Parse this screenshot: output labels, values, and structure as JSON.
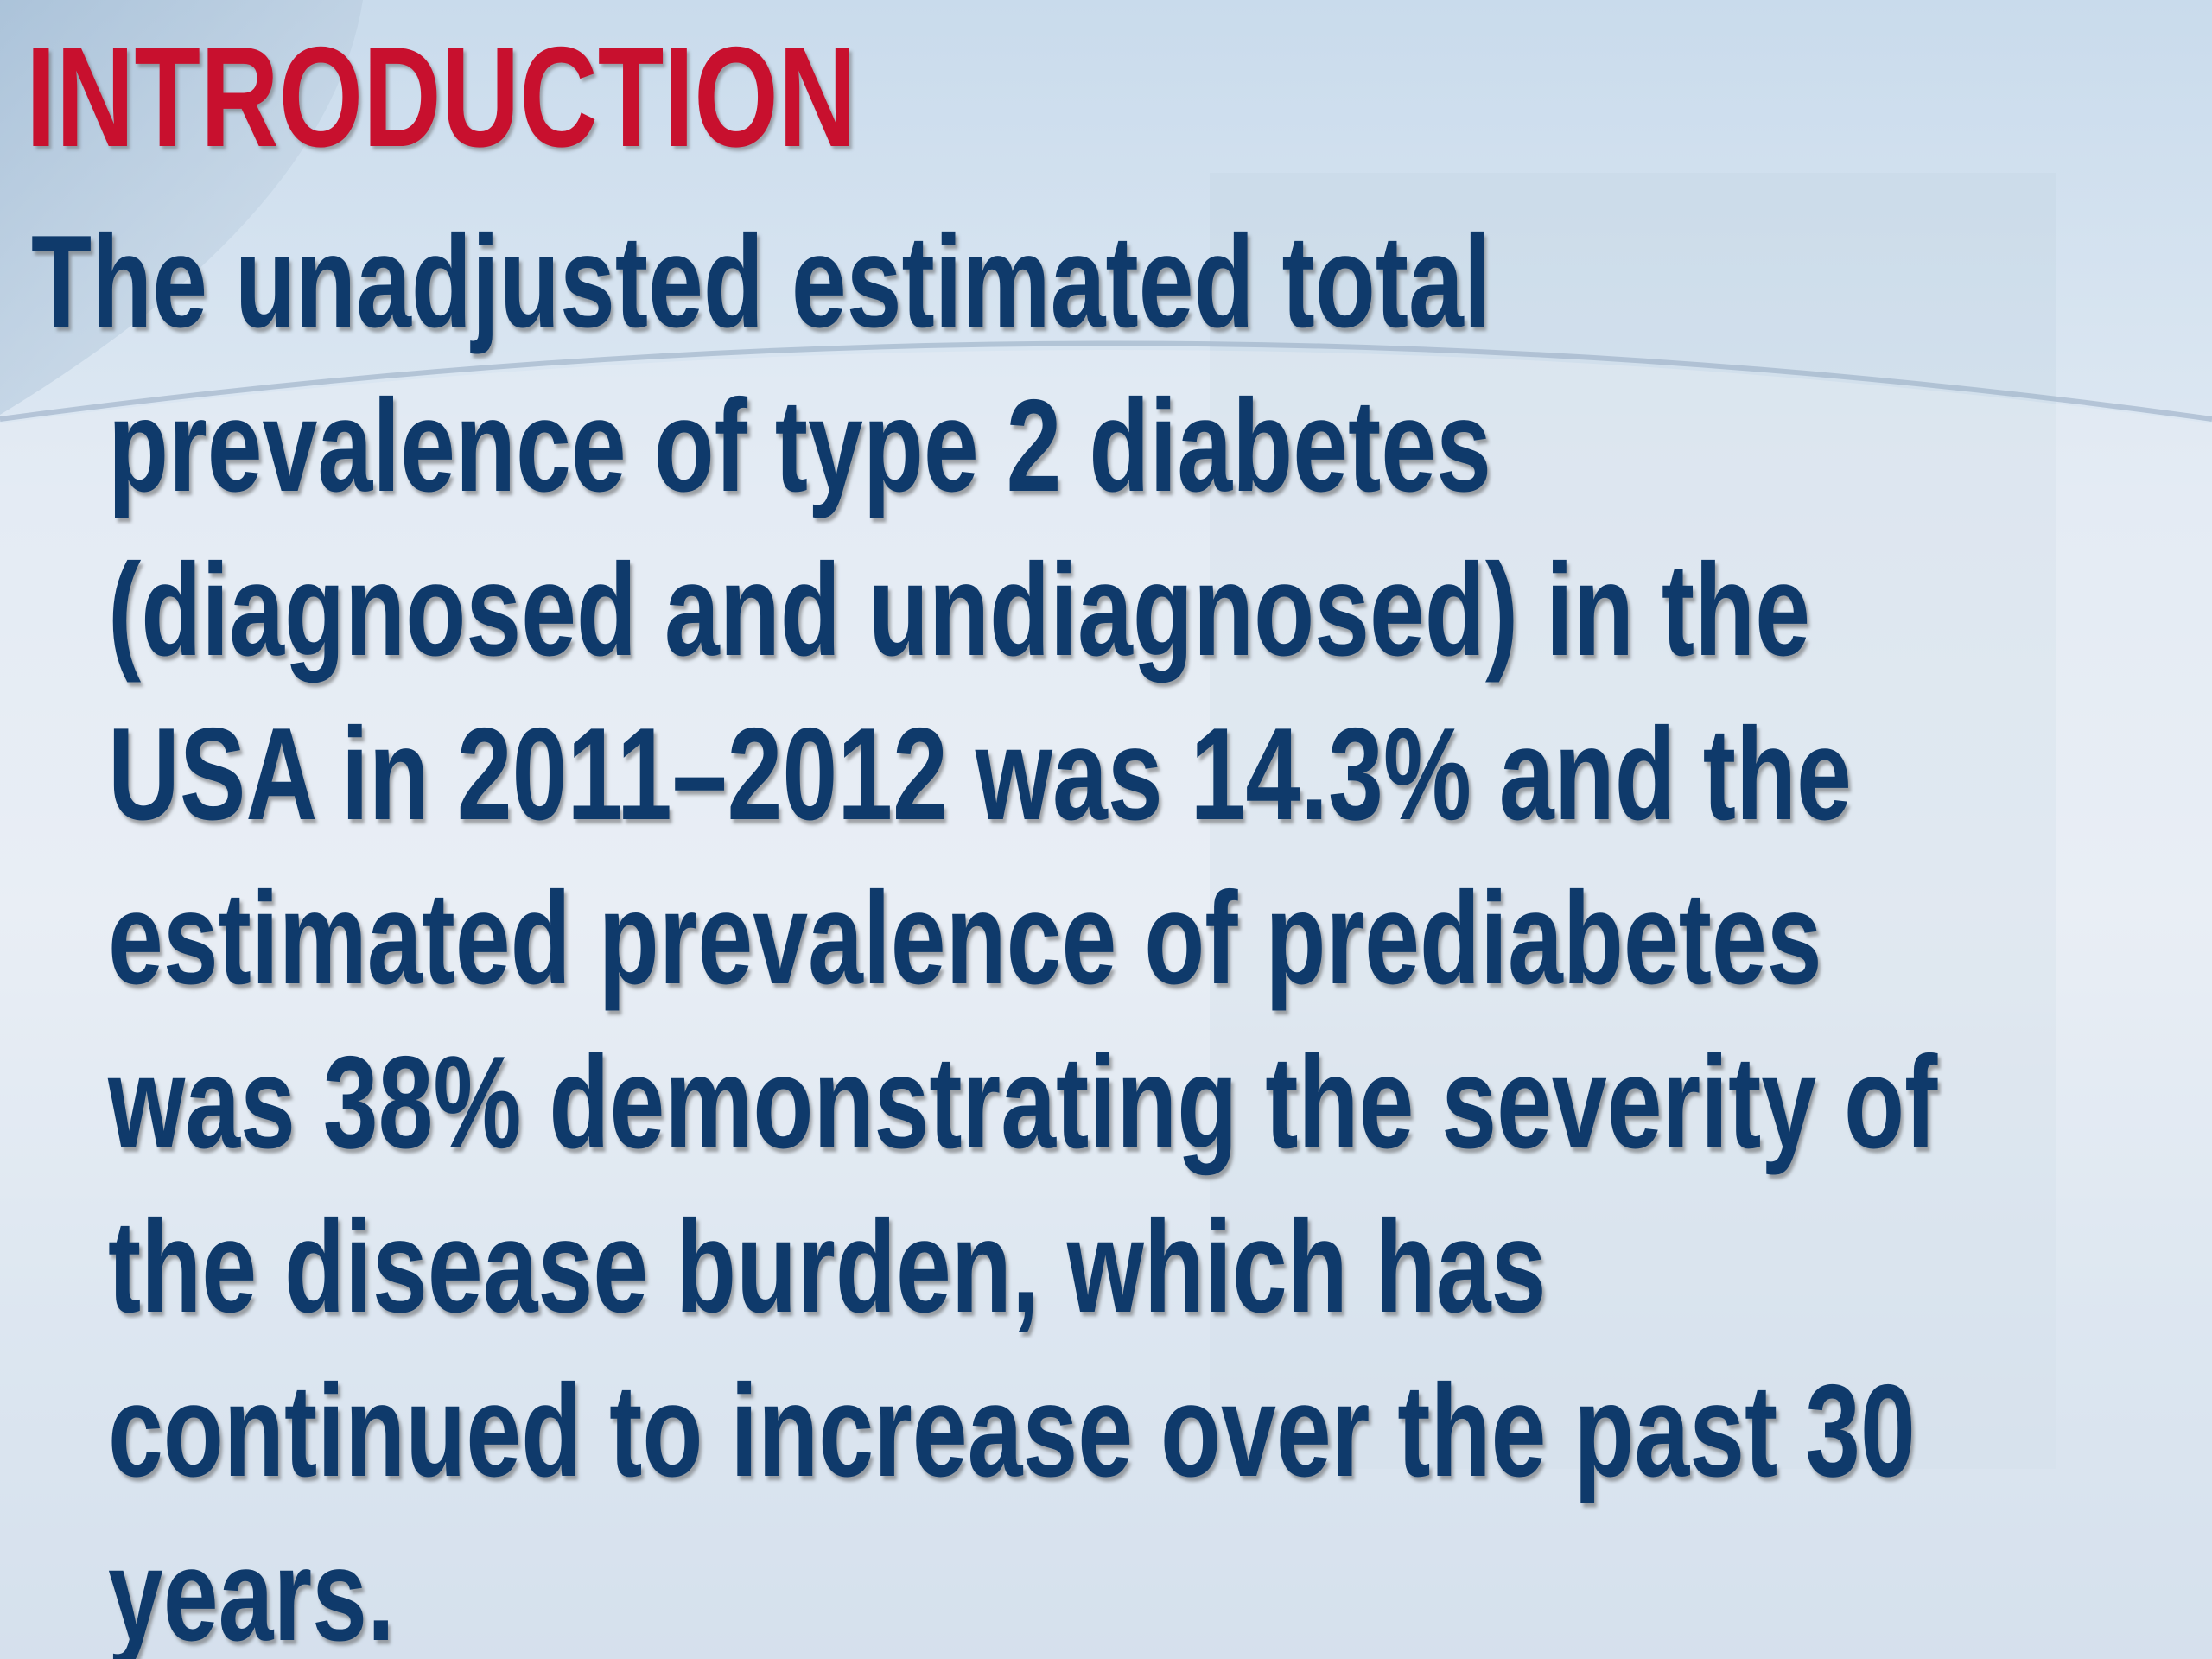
{
  "header": {
    "title": "INTRODUCTION"
  },
  "body": {
    "lines": [
      "The unadjusted estimated total",
      "prevalence of type 2 diabetes",
      "(diagnosed and undiagnosed) in the",
      "USA in 2011–2012 was 14.3% and the",
      "estimated prevalence of prediabetes",
      "was 38% demonstrating the severity of",
      "the disease burden, which has",
      "continued to increase over the past 30",
      "years."
    ]
  }
}
